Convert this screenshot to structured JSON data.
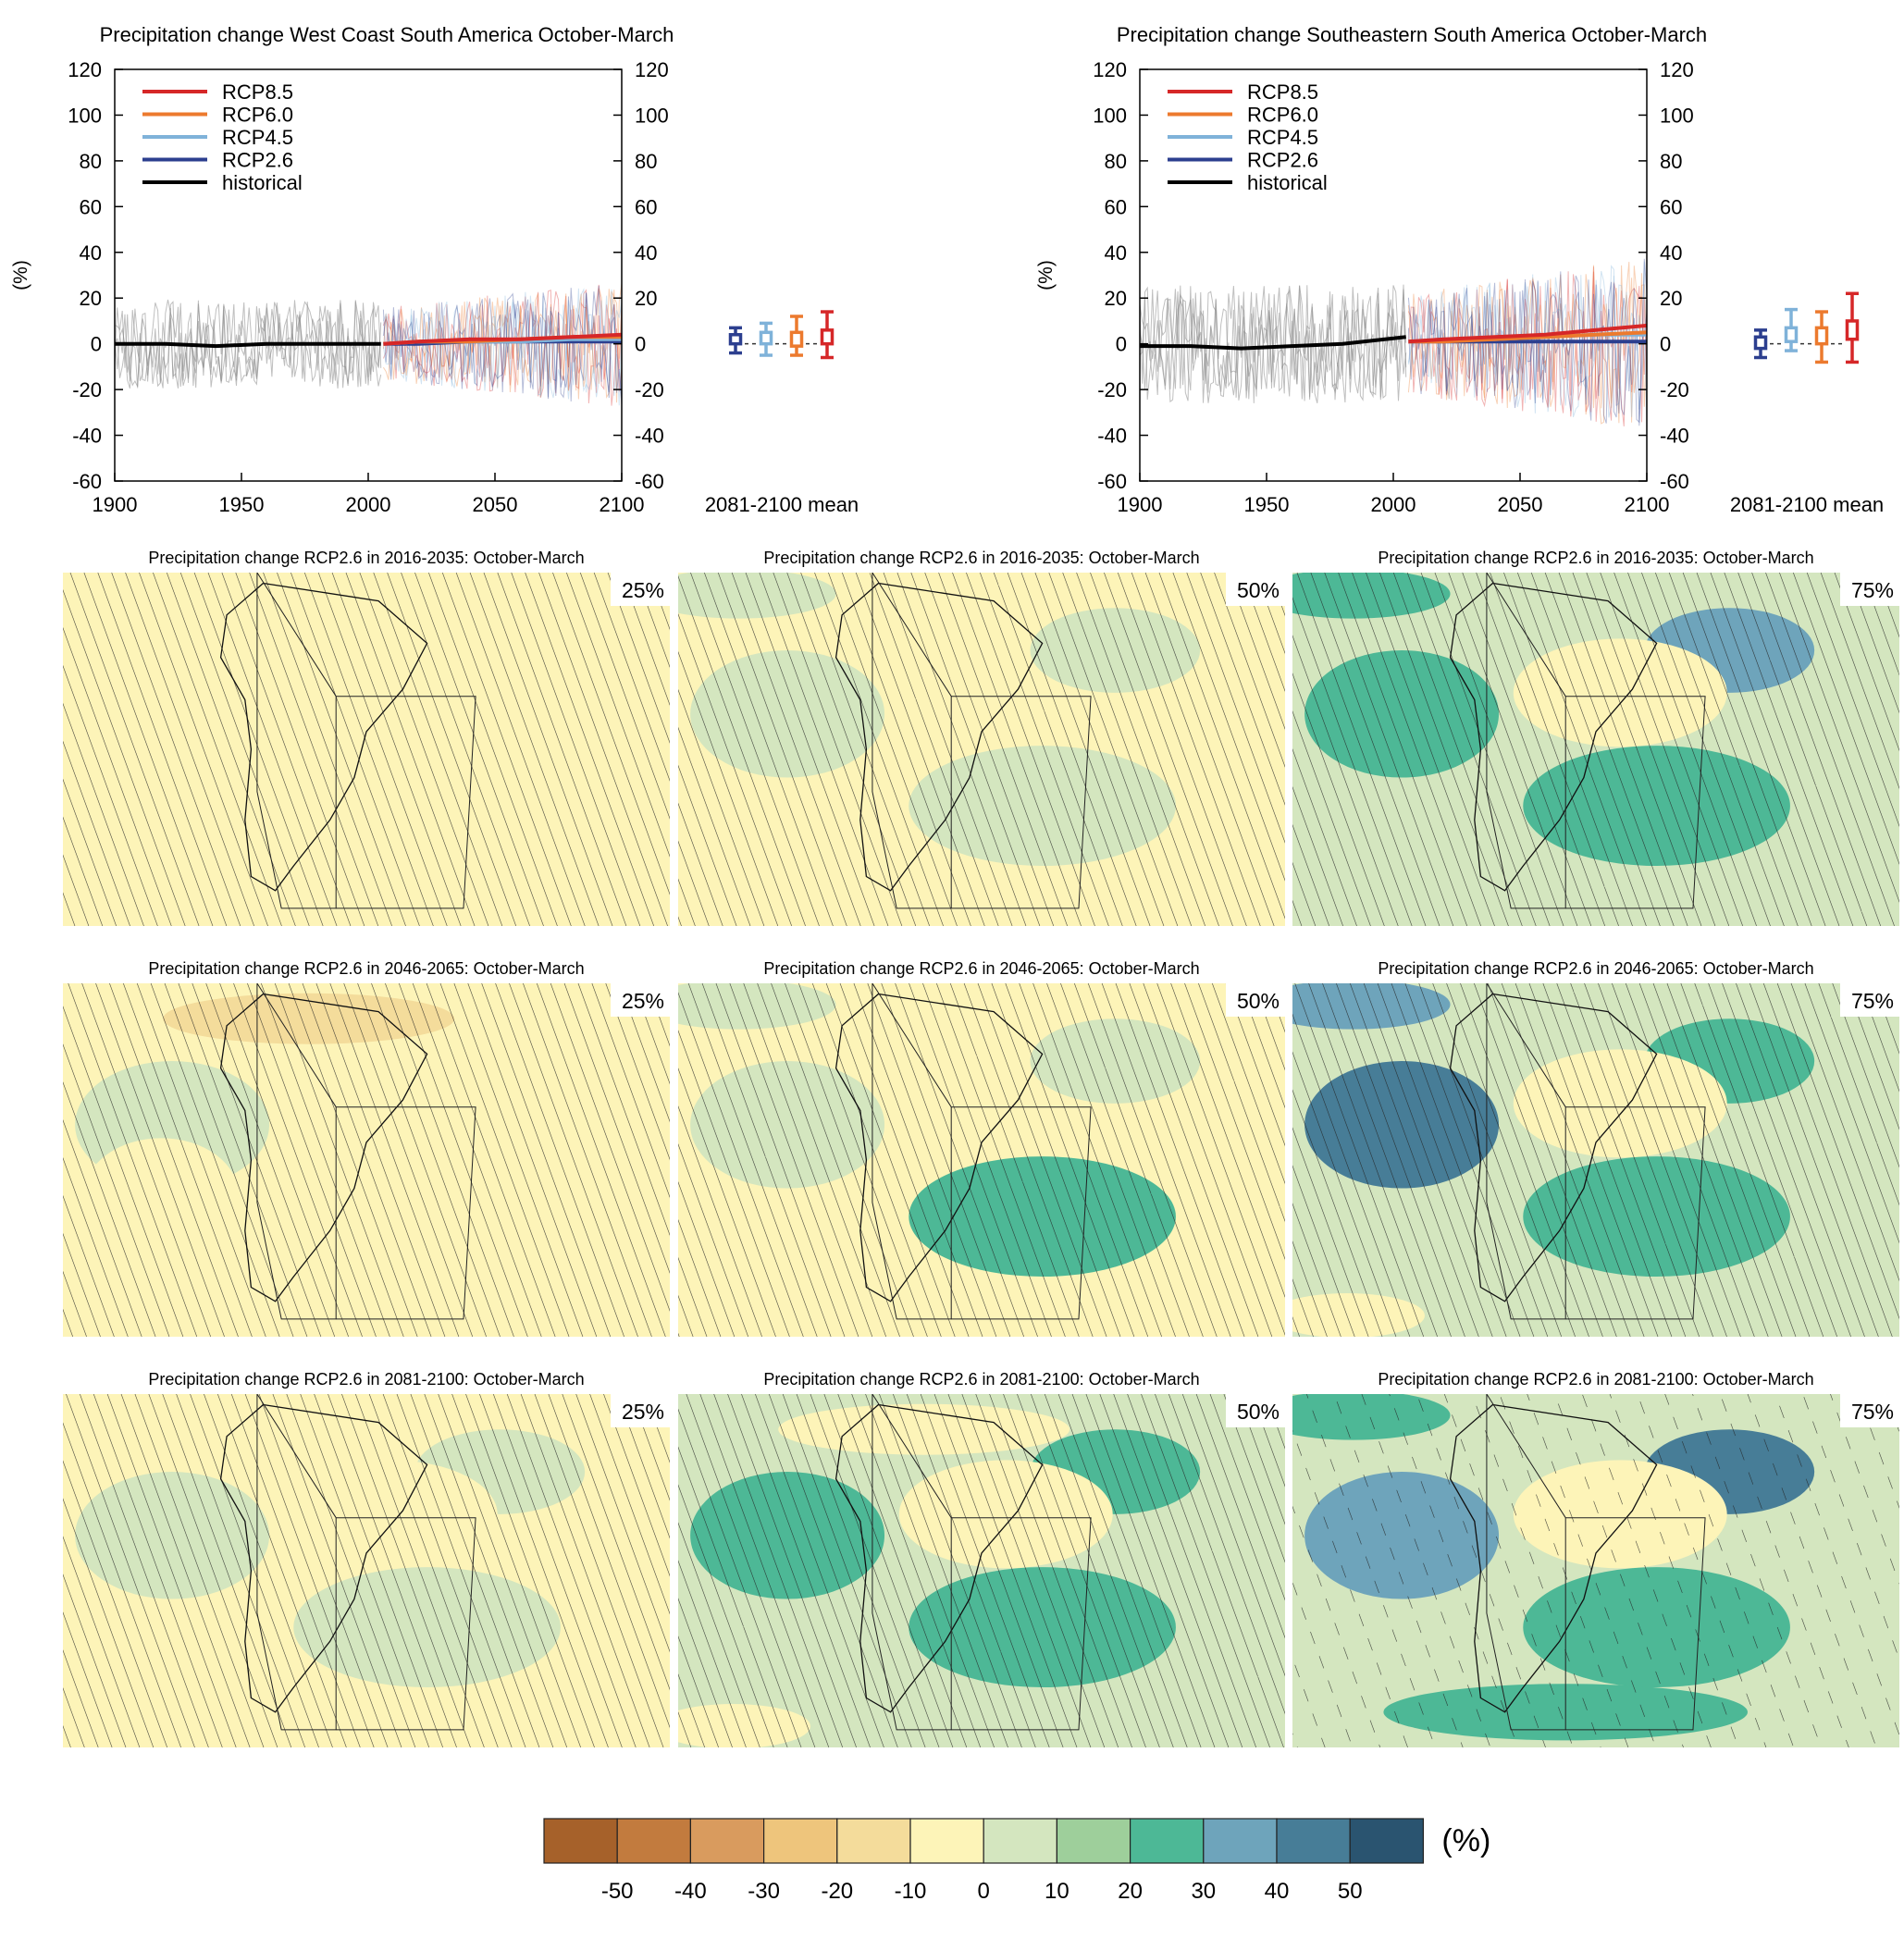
{
  "chart_data": [
    {
      "type": "line",
      "title": "Precipitation change West Coast South America October-March",
      "ylabel": "(%)",
      "xlabel": "",
      "xlim": [
        1900,
        2100
      ],
      "ylim": [
        -60,
        120
      ],
      "xticks": [
        "1900",
        "1950",
        "2000",
        "2050",
        "2100"
      ],
      "yticks": [
        "-60",
        "-40",
        "-20",
        "0",
        "20",
        "40",
        "60",
        "80",
        "100",
        "120"
      ],
      "legend_position": "top-left",
      "series": [
        {
          "name": "RCP8.5",
          "color": "#d62728",
          "x": [
            2006,
            2020,
            2040,
            2060,
            2080,
            2100
          ],
          "y": [
            0,
            1,
            2,
            2,
            3,
            4
          ]
        },
        {
          "name": "RCP6.0",
          "color": "#ec7a2e",
          "x": [
            2006,
            2020,
            2040,
            2060,
            2080,
            2100
          ],
          "y": [
            0,
            1,
            1,
            2,
            3,
            3
          ]
        },
        {
          "name": "RCP4.5",
          "color": "#7fb2d9",
          "x": [
            2006,
            2020,
            2040,
            2060,
            2080,
            2100
          ],
          "y": [
            0,
            1,
            1,
            1,
            2,
            2
          ]
        },
        {
          "name": "RCP2.6",
          "color": "#2c3f8f",
          "x": [
            2006,
            2020,
            2040,
            2060,
            2080,
            2100
          ],
          "y": [
            0,
            0,
            1,
            1,
            1,
            1
          ]
        },
        {
          "name": "historical",
          "color": "#000000",
          "x": [
            1900,
            1920,
            1940,
            1960,
            1980,
            2005
          ],
          "y": [
            0,
            0,
            -1,
            0,
            0,
            0
          ]
        }
      ],
      "envelope": {
        "historical": {
          "color": "#8a8a8a",
          "lower": -15,
          "upper": 15
        },
        "scenarios": {
          "lower": -20,
          "upper": 20
        }
      },
      "boxplot_label": "2081-2100 mean",
      "boxplots": [
        {
          "name": "RCP2.6",
          "color": "#2c3f8f",
          "min": -4,
          "q1": 0,
          "median": 2,
          "q3": 4,
          "max": 7
        },
        {
          "name": "RCP4.5",
          "color": "#7fb2d9",
          "min": -5,
          "q1": 0,
          "median": 2,
          "q3": 5,
          "max": 9
        },
        {
          "name": "RCP6.0",
          "color": "#ec7a2e",
          "min": -5,
          "q1": -1,
          "median": 2,
          "q3": 5,
          "max": 12
        },
        {
          "name": "RCP8.5",
          "color": "#d62728",
          "min": -6,
          "q1": 0,
          "median": 3,
          "q3": 6,
          "max": 14
        }
      ]
    },
    {
      "type": "line",
      "title": "Precipitation change Southeastern South America October-March",
      "ylabel": "(%)",
      "xlabel": "",
      "xlim": [
        1900,
        2100
      ],
      "ylim": [
        -60,
        120
      ],
      "xticks": [
        "1900",
        "1950",
        "2000",
        "2050",
        "2100"
      ],
      "yticks": [
        "-60",
        "-40",
        "-20",
        "0",
        "20",
        "40",
        "60",
        "80",
        "100",
        "120"
      ],
      "legend_position": "top-left",
      "series": [
        {
          "name": "RCP8.5",
          "color": "#d62728",
          "x": [
            2006,
            2020,
            2040,
            2060,
            2080,
            2100
          ],
          "y": [
            1,
            2,
            3,
            4,
            6,
            8
          ]
        },
        {
          "name": "RCP6.0",
          "color": "#ec7a2e",
          "x": [
            2006,
            2020,
            2040,
            2060,
            2080,
            2100
          ],
          "y": [
            1,
            1,
            2,
            3,
            4,
            5
          ]
        },
        {
          "name": "RCP4.5",
          "color": "#7fb2d9",
          "x": [
            2006,
            2020,
            2040,
            2060,
            2080,
            2100
          ],
          "y": [
            1,
            2,
            2,
            3,
            4,
            4
          ]
        },
        {
          "name": "RCP2.6",
          "color": "#2c3f8f",
          "x": [
            2006,
            2020,
            2040,
            2060,
            2080,
            2100
          ],
          "y": [
            1,
            1,
            1,
            1,
            1,
            1
          ]
        },
        {
          "name": "historical",
          "color": "#000000",
          "x": [
            1900,
            1920,
            1940,
            1960,
            1980,
            2005
          ],
          "y": [
            -1,
            -1,
            -2,
            -1,
            0,
            3
          ]
        }
      ],
      "envelope": {
        "historical": {
          "color": "#8a8a8a",
          "lower": -20,
          "upper": 20
        },
        "scenarios": {
          "lower": -25,
          "upper": 30
        }
      },
      "boxplot_label": "2081-2100 mean",
      "boxplots": [
        {
          "name": "RCP2.6",
          "color": "#2c3f8f",
          "min": -6,
          "q1": -2,
          "median": 1,
          "q3": 3,
          "max": 6
        },
        {
          "name": "RCP4.5",
          "color": "#7fb2d9",
          "min": -3,
          "q1": 1,
          "median": 4,
          "q3": 7,
          "max": 15
        },
        {
          "name": "RCP6.0",
          "color": "#ec7a2e",
          "min": -8,
          "q1": 0,
          "median": 3,
          "q3": 7,
          "max": 14
        },
        {
          "name": "RCP8.5",
          "color": "#d62728",
          "min": -8,
          "q1": 2,
          "median": 6,
          "q3": 10,
          "max": 22
        }
      ]
    },
    {
      "type": "heatmap",
      "maps": [
        {
          "title": "Precipitation change RCP2.6 in 2016-2035: October-March",
          "percentile": "25%",
          "base": 0,
          "wet": [],
          "dry": [
            "-10",
            "-10",
            "-10"
          ],
          "hatch": "dense"
        },
        {
          "title": "Precipitation change RCP2.6 in 2016-2035: October-March",
          "percentile": "50%",
          "base": 0,
          "wet": [
            "10",
            "10",
            "10",
            "10"
          ],
          "dry": [],
          "hatch": "dense"
        },
        {
          "title": "Precipitation change RCP2.6 in 2016-2035: October-March",
          "percentile": "75%",
          "base": 10,
          "wet": [
            "20",
            "30",
            "20",
            "20"
          ],
          "dry": [
            "0"
          ],
          "hatch": "dense"
        },
        {
          "title": "Precipitation change RCP2.6 in 2046-2065: October-March",
          "percentile": "25%",
          "base": 0,
          "wet": [
            "10"
          ],
          "dry": [
            "-10",
            "-10",
            "-20",
            "-10"
          ],
          "hatch": "dense"
        },
        {
          "title": "Precipitation change RCP2.6 in 2046-2065: October-March",
          "percentile": "50%",
          "base": 0,
          "wet": [
            "10",
            "10",
            "20",
            "10"
          ],
          "dry": [],
          "hatch": "dense"
        },
        {
          "title": "Precipitation change RCP2.6 in 2046-2065: October-March",
          "percentile": "75%",
          "base": 10,
          "wet": [
            "40",
            "20",
            "20",
            "30"
          ],
          "dry": [
            "0",
            "0"
          ],
          "hatch": "dense"
        },
        {
          "title": "Precipitation change RCP2.6 in 2081-2100: October-March",
          "percentile": "25%",
          "base": 0,
          "wet": [
            "10",
            "10",
            "10"
          ],
          "dry": [
            "-10",
            "-10",
            "-10"
          ],
          "hatch": "dense"
        },
        {
          "title": "Precipitation change RCP2.6 in 2081-2100: October-March",
          "percentile": "50%",
          "base": 10,
          "wet": [
            "20",
            "20",
            "20"
          ],
          "dry": [
            "0",
            "0",
            "0"
          ],
          "hatch": "dense"
        },
        {
          "title": "Precipitation change RCP2.6 in 2081-2100: October-March",
          "percentile": "75%",
          "base": 10,
          "wet": [
            "30",
            "40",
            "20",
            "20",
            "20"
          ],
          "dry": [
            "0"
          ],
          "hatch": "sparse"
        }
      ],
      "colorbar": {
        "unit": "(%)",
        "ticks": [
          "-50",
          "-40",
          "-30",
          "-20",
          "-10",
          "0",
          "10",
          "20",
          "30",
          "40",
          "50"
        ],
        "colors": [
          "#a6612a",
          "#c27b3e",
          "#d99b5e",
          "#eec57c",
          "#f4dc9b",
          "#fdf4b8",
          "#d4e6bf",
          "#9ecf9b",
          "#4db896",
          "#6ea4bb",
          "#477d97",
          "#2a5470"
        ]
      }
    }
  ]
}
